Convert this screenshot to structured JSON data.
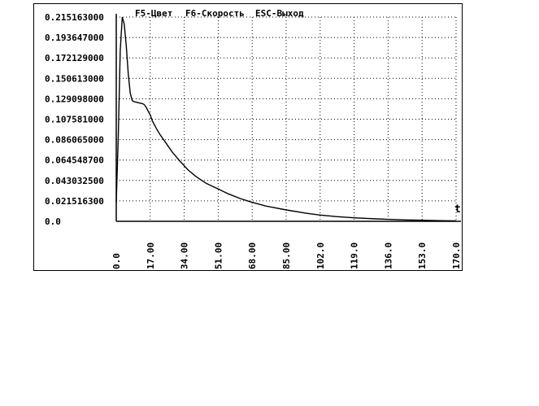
{
  "menu": {
    "color_key": "F5-Цвет",
    "speed_key": "F6-Скорость",
    "exit_key": "ESC-Выход"
  },
  "chart_data": {
    "type": "line",
    "title": "",
    "xlabel": "t",
    "ylabel": "",
    "xlim": [
      0,
      170
    ],
    "ylim": [
      0,
      0.215163
    ],
    "grid": true,
    "y_ticks": [
      {
        "value": 0.0,
        "label": "0.0"
      },
      {
        "value": 0.0215163,
        "label": "0.021516300"
      },
      {
        "value": 0.0430325,
        "label": "0.043032500"
      },
      {
        "value": 0.0645487,
        "label": "0.064548700"
      },
      {
        "value": 0.086065,
        "label": "0.086065000"
      },
      {
        "value": 0.107581,
        "label": "0.107581000"
      },
      {
        "value": 0.129098,
        "label": "0.129098000"
      },
      {
        "value": 0.150613,
        "label": "0.150613000"
      },
      {
        "value": 0.172129,
        "label": "0.172129000"
      },
      {
        "value": 0.193647,
        "label": "0.193647000"
      },
      {
        "value": 0.215163,
        "label": "0.215163000"
      }
    ],
    "x_ticks": [
      {
        "value": 0,
        "label": "0.0"
      },
      {
        "value": 17,
        "label": "17.00"
      },
      {
        "value": 34,
        "label": "34.00"
      },
      {
        "value": 51,
        "label": "51.00"
      },
      {
        "value": 68,
        "label": "68.00"
      },
      {
        "value": 85,
        "label": "85.00"
      },
      {
        "value": 102,
        "label": "102.0"
      },
      {
        "value": 119,
        "label": "119.0"
      },
      {
        "value": 136,
        "label": "136.0"
      },
      {
        "value": 153,
        "label": "153.0"
      },
      {
        "value": 170,
        "label": "170.0"
      }
    ],
    "series": [
      {
        "x": [
          0,
          1,
          2,
          3,
          4,
          5,
          6,
          7,
          8,
          9,
          10,
          11,
          12,
          13,
          14,
          15,
          16,
          17,
          18,
          20,
          22,
          25,
          28,
          32,
          36,
          40,
          45,
          51,
          56,
          62,
          68,
          75,
          85,
          95,
          102,
          110,
          119,
          130,
          136,
          145,
          153,
          162,
          170
        ],
        "y": [
          0.02,
          0.09,
          0.18,
          0.2151,
          0.208,
          0.185,
          0.155,
          0.135,
          0.127,
          0.126,
          0.1255,
          0.125,
          0.1245,
          0.124,
          0.123,
          0.12,
          0.116,
          0.112,
          0.106,
          0.098,
          0.091,
          0.082,
          0.073,
          0.063,
          0.054,
          0.047,
          0.04,
          0.034,
          0.029,
          0.024,
          0.02,
          0.016,
          0.012,
          0.0085,
          0.0066,
          0.005,
          0.0037,
          0.0026,
          0.0021,
          0.0015,
          0.0011,
          0.0007,
          0.0004
        ]
      }
    ]
  }
}
